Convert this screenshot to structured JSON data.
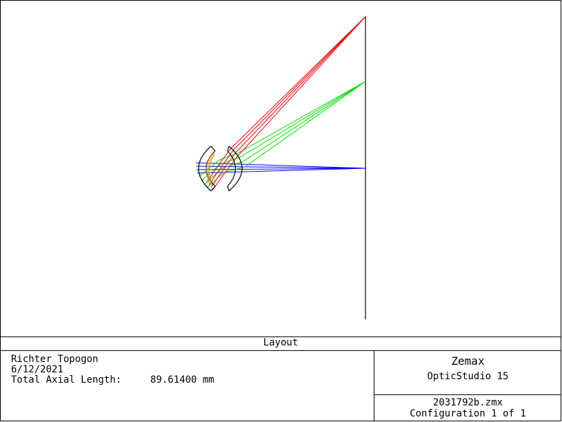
{
  "plot": {
    "title": "Layout"
  },
  "info": {
    "lens_name": "Richter Topogon",
    "date": "6/12/2021",
    "length_label": "Total Axial Length:",
    "length_value": "89.61400 mm"
  },
  "brand": {
    "company": "Zemax",
    "product": "OpticStudio 15"
  },
  "file": {
    "name": "2031792b.zmx",
    "configuration": "Configuration 1 of 1"
  },
  "colors": {
    "field_1": "#0000ff",
    "field_2": "#00dd00",
    "field_3": "#ee0000",
    "glass_fill": "#f0a030"
  }
}
